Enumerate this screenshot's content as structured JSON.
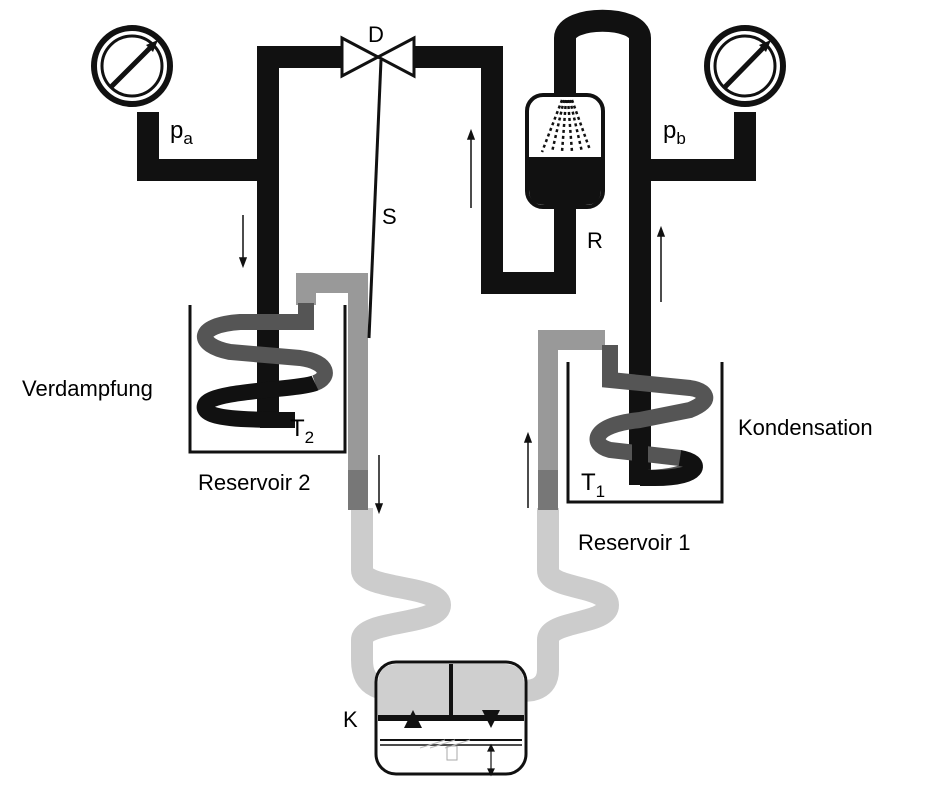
{
  "labels": {
    "valve": "D",
    "rod": "S",
    "receiver": "R",
    "pa_main": "p",
    "pa_sub": "a",
    "pb_main": "p",
    "pb_sub": "b",
    "t2_main": "T",
    "t2_sub": "2",
    "t1_main": "T",
    "t1_sub": "1",
    "evaporation": "Verdampfung",
    "condensation": "Kondensation",
    "reservoir2": "Reservoir 2",
    "reservoir1": "Reservoir 1",
    "compressor": "K"
  },
  "colors": {
    "black_pipe": "#111111",
    "dark_gray_pipe": "#555555",
    "mid_gray_pipe": "#999999",
    "light_gray_pipe": "#cccccc",
    "compressor_fill": "#cfcfcf"
  }
}
